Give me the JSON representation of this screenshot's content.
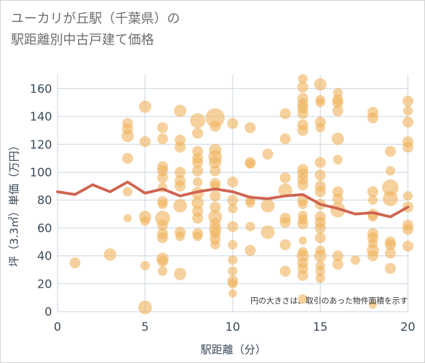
{
  "title_lines": [
    "ユーカリが丘駅（千葉県）の",
    "駅距離別中古戸建て価格"
  ],
  "chart_data": {
    "type": "scatter",
    "title": "ユーカリが丘駅（千葉県）の駅距離別中古戸建て価格",
    "xlabel": "駅距離（分）",
    "ylabel": "坪（3.3㎡）単価（万円）",
    "xlim": [
      0,
      20
    ],
    "ylim": [
      0,
      170
    ],
    "xticks": [
      0,
      5,
      10,
      15,
      20
    ],
    "yticks": [
      0,
      20,
      40,
      60,
      80,
      100,
      120,
      140,
      160
    ],
    "grid": true,
    "note": "円の大きさは、取引のあった物件面積を示す",
    "colors": {
      "bubble": "#f0b35c",
      "line": "#cf6450",
      "grid": "#c8d3df"
    },
    "series": [
      {
        "kind": "bubble",
        "points": [
          {
            "x": 1,
            "y": 35,
            "s": 8
          },
          {
            "x": 3,
            "y": 41,
            "s": 9
          },
          {
            "x": 4,
            "y": 135,
            "s": 8
          },
          {
            "x": 4,
            "y": 131,
            "s": 8
          },
          {
            "x": 4,
            "y": 126,
            "s": 9
          },
          {
            "x": 4,
            "y": 110,
            "s": 8
          },
          {
            "x": 4,
            "y": 86,
            "s": 7
          },
          {
            "x": 4,
            "y": 67,
            "s": 6
          },
          {
            "x": 5,
            "y": 147,
            "s": 9
          },
          {
            "x": 5,
            "y": 122,
            "s": 8
          },
          {
            "x": 5,
            "y": 68,
            "s": 9
          },
          {
            "x": 5,
            "y": 65,
            "s": 7
          },
          {
            "x": 5,
            "y": 33,
            "s": 7
          },
          {
            "x": 5,
            "y": 3,
            "s": 10
          },
          {
            "x": 6,
            "y": 132,
            "s": 8
          },
          {
            "x": 6,
            "y": 124,
            "s": 8
          },
          {
            "x": 6,
            "y": 104,
            "s": 8
          },
          {
            "x": 6,
            "y": 101,
            "s": 8
          },
          {
            "x": 6,
            "y": 96,
            "s": 8
          },
          {
            "x": 6,
            "y": 89,
            "s": 7
          },
          {
            "x": 6,
            "y": 79,
            "s": 8
          },
          {
            "x": 6,
            "y": 77,
            "s": 7
          },
          {
            "x": 6,
            "y": 67,
            "s": 11
          },
          {
            "x": 6,
            "y": 62,
            "s": 8
          },
          {
            "x": 6,
            "y": 56,
            "s": 8
          },
          {
            "x": 6,
            "y": 53,
            "s": 8
          },
          {
            "x": 6,
            "y": 38,
            "s": 9
          },
          {
            "x": 6,
            "y": 36,
            "s": 8
          },
          {
            "x": 6,
            "y": 29,
            "s": 7
          },
          {
            "x": 7,
            "y": 144,
            "s": 9
          },
          {
            "x": 7,
            "y": 123,
            "s": 8
          },
          {
            "x": 7,
            "y": 118,
            "s": 8
          },
          {
            "x": 7,
            "y": 100,
            "s": 8
          },
          {
            "x": 7,
            "y": 94,
            "s": 8
          },
          {
            "x": 7,
            "y": 90,
            "s": 8
          },
          {
            "x": 7,
            "y": 76,
            "s": 10
          },
          {
            "x": 7,
            "y": 57,
            "s": 8
          },
          {
            "x": 7,
            "y": 54,
            "s": 7
          },
          {
            "x": 7,
            "y": 27,
            "s": 9
          },
          {
            "x": 8,
            "y": 137,
            "s": 11
          },
          {
            "x": 8,
            "y": 128,
            "s": 8
          },
          {
            "x": 8,
            "y": 115,
            "s": 8
          },
          {
            "x": 8,
            "y": 110,
            "s": 8
          },
          {
            "x": 8,
            "y": 107,
            "s": 8
          },
          {
            "x": 8,
            "y": 101,
            "s": 8
          },
          {
            "x": 8,
            "y": 93,
            "s": 7
          },
          {
            "x": 8,
            "y": 85,
            "s": 9
          },
          {
            "x": 8,
            "y": 78,
            "s": 9
          },
          {
            "x": 8,
            "y": 72,
            "s": 8
          },
          {
            "x": 8,
            "y": 67,
            "s": 8
          },
          {
            "x": 8,
            "y": 56,
            "s": 8
          },
          {
            "x": 8,
            "y": 54,
            "s": 7
          },
          {
            "x": 9,
            "y": 139,
            "s": 14
          },
          {
            "x": 9,
            "y": 133,
            "s": 8
          },
          {
            "x": 9,
            "y": 116,
            "s": 9
          },
          {
            "x": 9,
            "y": 111,
            "s": 10
          },
          {
            "x": 9,
            "y": 107,
            "s": 9
          },
          {
            "x": 9,
            "y": 101,
            "s": 8
          },
          {
            "x": 9,
            "y": 92,
            "s": 8
          },
          {
            "x": 9,
            "y": 90,
            "s": 7
          },
          {
            "x": 9,
            "y": 83,
            "s": 8
          },
          {
            "x": 9,
            "y": 75,
            "s": 8
          },
          {
            "x": 9,
            "y": 68,
            "s": 10
          },
          {
            "x": 9,
            "y": 63,
            "s": 8
          },
          {
            "x": 9,
            "y": 59,
            "s": 9
          },
          {
            "x": 9,
            "y": 56,
            "s": 8
          },
          {
            "x": 9,
            "y": 52,
            "s": 8
          },
          {
            "x": 9,
            "y": 48,
            "s": 7
          },
          {
            "x": 10,
            "y": 135,
            "s": 8
          },
          {
            "x": 10,
            "y": 93,
            "s": 8
          },
          {
            "x": 10,
            "y": 80,
            "s": 8
          },
          {
            "x": 10,
            "y": 74,
            "s": 7
          },
          {
            "x": 10,
            "y": 61,
            "s": 8
          },
          {
            "x": 10,
            "y": 48,
            "s": 7
          },
          {
            "x": 10,
            "y": 37,
            "s": 7
          },
          {
            "x": 10,
            "y": 29,
            "s": 7
          },
          {
            "x": 10,
            "y": 22,
            "s": 8
          },
          {
            "x": 10,
            "y": 20,
            "s": 7
          },
          {
            "x": 10,
            "y": 13,
            "s": 6
          },
          {
            "x": 11,
            "y": 132,
            "s": 8
          },
          {
            "x": 11,
            "y": 107,
            "s": 8
          },
          {
            "x": 11,
            "y": 106,
            "s": 7
          },
          {
            "x": 11,
            "y": 80,
            "s": 7
          },
          {
            "x": 11,
            "y": 78,
            "s": 7
          },
          {
            "x": 11,
            "y": 61,
            "s": 7
          },
          {
            "x": 11,
            "y": 44,
            "s": 8
          },
          {
            "x": 12,
            "y": 113,
            "s": 8
          },
          {
            "x": 12,
            "y": 76,
            "s": 10
          },
          {
            "x": 12,
            "y": 57,
            "s": 10
          },
          {
            "x": 13,
            "y": 142,
            "s": 8
          },
          {
            "x": 13,
            "y": 124,
            "s": 8
          },
          {
            "x": 13,
            "y": 96,
            "s": 8
          },
          {
            "x": 13,
            "y": 87,
            "s": 10
          },
          {
            "x": 13,
            "y": 67,
            "s": 8
          },
          {
            "x": 13,
            "y": 64,
            "s": 8
          },
          {
            "x": 13,
            "y": 48,
            "s": 8
          },
          {
            "x": 13,
            "y": 29,
            "s": 8
          },
          {
            "x": 14,
            "y": 167,
            "s": 7
          },
          {
            "x": 14,
            "y": 161,
            "s": 8
          },
          {
            "x": 14,
            "y": 153,
            "s": 8
          },
          {
            "x": 14,
            "y": 149,
            "s": 8
          },
          {
            "x": 14,
            "y": 146,
            "s": 8
          },
          {
            "x": 14,
            "y": 142,
            "s": 8
          },
          {
            "x": 14,
            "y": 134,
            "s": 8
          },
          {
            "x": 14,
            "y": 130,
            "s": 8
          },
          {
            "x": 14,
            "y": 102,
            "s": 8
          },
          {
            "x": 14,
            "y": 99,
            "s": 8
          },
          {
            "x": 14,
            "y": 95,
            "s": 8
          },
          {
            "x": 14,
            "y": 91,
            "s": 8
          },
          {
            "x": 14,
            "y": 80,
            "s": 8
          },
          {
            "x": 14,
            "y": 77,
            "s": 7
          },
          {
            "x": 14,
            "y": 69,
            "s": 7
          },
          {
            "x": 14,
            "y": 66,
            "s": 7
          },
          {
            "x": 14,
            "y": 63,
            "s": 8
          },
          {
            "x": 14,
            "y": 51,
            "s": 6
          },
          {
            "x": 14,
            "y": 43,
            "s": 7
          },
          {
            "x": 14,
            "y": 40,
            "s": 9
          },
          {
            "x": 14,
            "y": 35,
            "s": 8
          },
          {
            "x": 14,
            "y": 31,
            "s": 8
          },
          {
            "x": 14,
            "y": 26,
            "s": 8
          },
          {
            "x": 14,
            "y": 9,
            "s": 7
          },
          {
            "x": 15,
            "y": 163,
            "s": 9
          },
          {
            "x": 15,
            "y": 152,
            "s": 7
          },
          {
            "x": 15,
            "y": 150,
            "s": 7
          },
          {
            "x": 15,
            "y": 136,
            "s": 8
          },
          {
            "x": 15,
            "y": 132,
            "s": 7
          },
          {
            "x": 15,
            "y": 107,
            "s": 8
          },
          {
            "x": 15,
            "y": 98,
            "s": 8
          },
          {
            "x": 15,
            "y": 90,
            "s": 8
          },
          {
            "x": 15,
            "y": 86,
            "s": 8
          },
          {
            "x": 15,
            "y": 77,
            "s": 8
          },
          {
            "x": 15,
            "y": 68,
            "s": 8
          },
          {
            "x": 15,
            "y": 64,
            "s": 8
          },
          {
            "x": 15,
            "y": 60,
            "s": 8
          },
          {
            "x": 15,
            "y": 53,
            "s": 8
          },
          {
            "x": 15,
            "y": 44,
            "s": 7
          },
          {
            "x": 15,
            "y": 40,
            "s": 9
          },
          {
            "x": 15,
            "y": 33,
            "s": 7
          },
          {
            "x": 15,
            "y": 29,
            "s": 7
          },
          {
            "x": 15,
            "y": 24,
            "s": 7
          },
          {
            "x": 16,
            "y": 157,
            "s": 7
          },
          {
            "x": 16,
            "y": 152,
            "s": 8
          },
          {
            "x": 16,
            "y": 150,
            "s": 8
          },
          {
            "x": 16,
            "y": 144,
            "s": 8
          },
          {
            "x": 16,
            "y": 124,
            "s": 9
          },
          {
            "x": 16,
            "y": 109,
            "s": 7
          },
          {
            "x": 16,
            "y": 86,
            "s": 8
          },
          {
            "x": 16,
            "y": 81,
            "s": 8
          },
          {
            "x": 16,
            "y": 73,
            "s": 11
          },
          {
            "x": 16,
            "y": 40,
            "s": 8
          },
          {
            "x": 16,
            "y": 34,
            "s": 8
          },
          {
            "x": 17,
            "y": 37,
            "s": 7
          },
          {
            "x": 18,
            "y": 143,
            "s": 8
          },
          {
            "x": 18,
            "y": 139,
            "s": 8
          },
          {
            "x": 18,
            "y": 86,
            "s": 8
          },
          {
            "x": 18,
            "y": 80,
            "s": 7
          },
          {
            "x": 18,
            "y": 70,
            "s": 8
          },
          {
            "x": 18,
            "y": 68,
            "s": 7
          },
          {
            "x": 18,
            "y": 56,
            "s": 8
          },
          {
            "x": 18,
            "y": 53,
            "s": 8
          },
          {
            "x": 18,
            "y": 49,
            "s": 7
          },
          {
            "x": 18,
            "y": 44,
            "s": 9
          },
          {
            "x": 18,
            "y": 40,
            "s": 8
          },
          {
            "x": 18,
            "y": 5,
            "s": 6
          },
          {
            "x": 19,
            "y": 115,
            "s": 8
          },
          {
            "x": 19,
            "y": 101,
            "s": 7
          },
          {
            "x": 19,
            "y": 89,
            "s": 12
          },
          {
            "x": 19,
            "y": 81,
            "s": 11
          },
          {
            "x": 19,
            "y": 50,
            "s": 8
          },
          {
            "x": 19,
            "y": 48,
            "s": 8
          },
          {
            "x": 19,
            "y": 42,
            "s": 8
          },
          {
            "x": 19,
            "y": 31,
            "s": 8
          },
          {
            "x": 20,
            "y": 151,
            "s": 8
          },
          {
            "x": 20,
            "y": 144,
            "s": 7
          },
          {
            "x": 20,
            "y": 136,
            "s": 8
          },
          {
            "x": 20,
            "y": 122,
            "s": 8
          },
          {
            "x": 20,
            "y": 118,
            "s": 8
          },
          {
            "x": 20,
            "y": 83,
            "s": 7
          },
          {
            "x": 20,
            "y": 75,
            "s": 8
          },
          {
            "x": 20,
            "y": 62,
            "s": 8
          },
          {
            "x": 20,
            "y": 59,
            "s": 8
          },
          {
            "x": 20,
            "y": 47,
            "s": 8
          }
        ]
      },
      {
        "kind": "line",
        "x": [
          0,
          1,
          2,
          3,
          4,
          5,
          6,
          7,
          8,
          9,
          10,
          11,
          12,
          13,
          14,
          15,
          16,
          17,
          18,
          19,
          20
        ],
        "y": [
          86,
          84,
          91,
          86,
          93,
          85,
          88,
          83,
          86,
          88,
          86,
          82,
          81,
          83,
          84,
          77,
          74,
          70,
          71,
          68,
          75
        ]
      }
    ]
  }
}
